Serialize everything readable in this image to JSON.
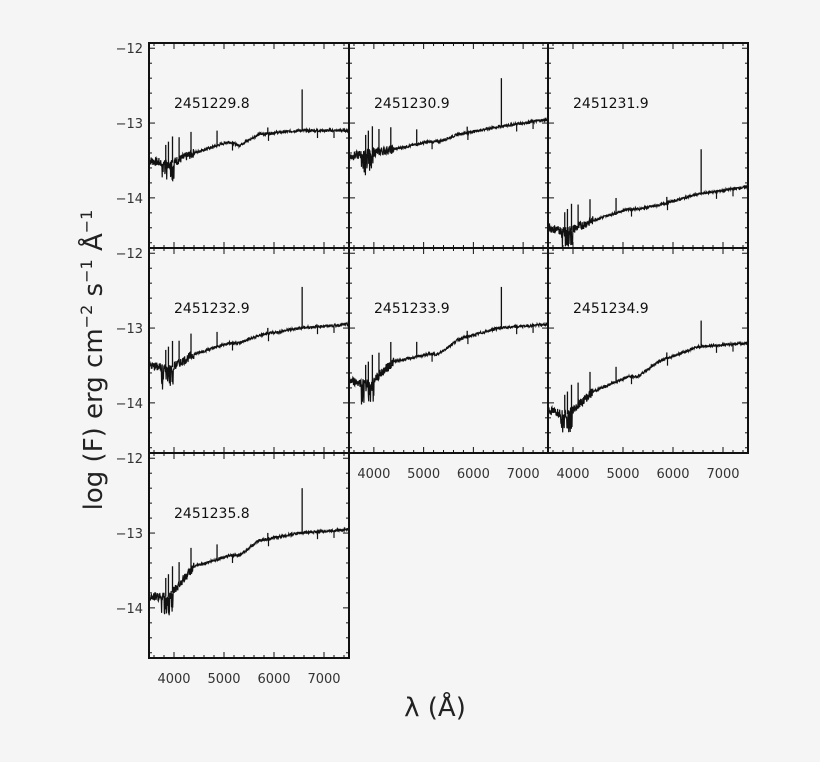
{
  "chart_data": {
    "type": "line",
    "title": "",
    "xlabel": "λ (Å)",
    "ylabel": "log (F) erg cm^-2 s^-1 Å^-1",
    "xlim": [
      3500,
      7500
    ],
    "ylim": [
      -14.67,
      -11.93
    ],
    "x_ticks": [
      4000,
      5000,
      6000,
      7000
    ],
    "y_ticks": [
      -12,
      -13,
      -14
    ],
    "grid": false,
    "legend": null,
    "layout": "3x3 grid of panels (7 used)",
    "panels": [
      {
        "label": "2451229.8",
        "row": 0,
        "col": 0,
        "continuum": [
          [
            3500,
            -13.5
          ],
          [
            3900,
            -13.55
          ],
          [
            4400,
            -13.4
          ],
          [
            5100,
            -13.25
          ],
          [
            5300,
            -13.3
          ],
          [
            5700,
            -13.15
          ],
          [
            6500,
            -13.1
          ],
          [
            7500,
            -13.1
          ]
        ],
        "halpha_peak": -12.55
      },
      {
        "label": "2451230.9",
        "row": 0,
        "col": 1,
        "continuum": [
          [
            3500,
            -13.45
          ],
          [
            3900,
            -13.4
          ],
          [
            4400,
            -13.35
          ],
          [
            5100,
            -13.25
          ],
          [
            5300,
            -13.25
          ],
          [
            5700,
            -13.15
          ],
          [
            6500,
            -13.05
          ],
          [
            7500,
            -12.95
          ]
        ],
        "halpha_peak": -12.4
      },
      {
        "label": "2451231.9",
        "row": 0,
        "col": 2,
        "continuum": [
          [
            3500,
            -14.4
          ],
          [
            3900,
            -14.45
          ],
          [
            4400,
            -14.3
          ],
          [
            5100,
            -14.15
          ],
          [
            5300,
            -14.15
          ],
          [
            5700,
            -14.1
          ],
          [
            6500,
            -13.95
          ],
          [
            7500,
            -13.85
          ]
        ],
        "halpha_peak": -13.35
      },
      {
        "label": "2451232.9",
        "row": 1,
        "col": 0,
        "continuum": [
          [
            3500,
            -13.5
          ],
          [
            3900,
            -13.55
          ],
          [
            4400,
            -13.35
          ],
          [
            5100,
            -13.2
          ],
          [
            5300,
            -13.2
          ],
          [
            5700,
            -13.1
          ],
          [
            6500,
            -13.0
          ],
          [
            7500,
            -12.95
          ]
        ],
        "halpha_peak": -12.45
      },
      {
        "label": "2451233.9",
        "row": 1,
        "col": 1,
        "continuum": [
          [
            3500,
            -13.7
          ],
          [
            3900,
            -13.75
          ],
          [
            4400,
            -13.45
          ],
          [
            5100,
            -13.35
          ],
          [
            5300,
            -13.35
          ],
          [
            5700,
            -13.15
          ],
          [
            6500,
            -13.0
          ],
          [
            7500,
            -12.95
          ]
        ],
        "halpha_peak": -12.45
      },
      {
        "label": "2451234.9",
        "row": 1,
        "col": 2,
        "continuum": [
          [
            3500,
            -14.1
          ],
          [
            3900,
            -14.15
          ],
          [
            4400,
            -13.85
          ],
          [
            5100,
            -13.65
          ],
          [
            5300,
            -13.65
          ],
          [
            5700,
            -13.45
          ],
          [
            6500,
            -13.25
          ],
          [
            7500,
            -13.2
          ]
        ],
        "halpha_peak": -12.9
      },
      {
        "label": "2451235.8",
        "row": 2,
        "col": 0,
        "continuum": [
          [
            3500,
            -13.85
          ],
          [
            3900,
            -13.85
          ],
          [
            4400,
            -13.45
          ],
          [
            5100,
            -13.3
          ],
          [
            5300,
            -13.3
          ],
          [
            5700,
            -13.1
          ],
          [
            6500,
            -13.0
          ],
          [
            7500,
            -12.95
          ]
        ],
        "halpha_peak": -12.4
      }
    ],
    "emission_lines_A": [
      3835,
      3889,
      3970,
      4102,
      4340,
      4861,
      5876,
      6563
    ],
    "absorption_features_A": [
      5170,
      5890,
      6870,
      7200
    ]
  },
  "axis_titles": {
    "x": "λ  (Å)",
    "y_parts": [
      "log  (F)  erg  cm",
      "−2",
      "  s",
      "−1",
      "  Å",
      "−1"
    ]
  }
}
